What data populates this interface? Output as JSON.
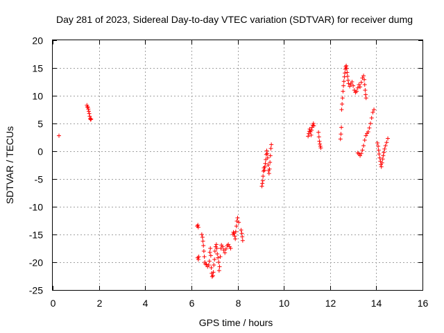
{
  "chart_data": {
    "type": "scatter",
    "title": "Day 281 of 2023, Sidereal Day-to-day VTEC variation (SDTVAR) for receiver dumg",
    "xlabel": "GPS time / hours",
    "ylabel": "SDTVAR / TECUs",
    "xlim": [
      0,
      16
    ],
    "ylim": [
      -25,
      20
    ],
    "xticks": [
      0,
      2,
      4,
      6,
      8,
      10,
      12,
      14,
      16
    ],
    "yticks": [
      -25,
      -20,
      -15,
      -10,
      -5,
      0,
      5,
      10,
      15,
      20
    ],
    "grid": true,
    "marker": "+",
    "color": "#ff0000",
    "series": [
      {
        "name": "SDTVAR",
        "points": [
          [
            0.27,
            2.8
          ],
          [
            1.48,
            8.3
          ],
          [
            1.5,
            8.0
          ],
          [
            1.52,
            7.9
          ],
          [
            1.54,
            7.6
          ],
          [
            1.56,
            7.2
          ],
          [
            1.58,
            6.8
          ],
          [
            1.6,
            6.3
          ],
          [
            1.62,
            5.9
          ],
          [
            1.64,
            5.7
          ],
          [
            1.66,
            5.8
          ],
          [
            6.25,
            -13.5
          ],
          [
            6.28,
            -13.3
          ],
          [
            6.3,
            -13.7
          ],
          [
            6.27,
            -19.2
          ],
          [
            6.3,
            -19.5
          ],
          [
            6.32,
            -19.0
          ],
          [
            6.45,
            -15.0
          ],
          [
            6.48,
            -15.5
          ],
          [
            6.5,
            -16.2
          ],
          [
            6.52,
            -17.0
          ],
          [
            6.54,
            -18.0
          ],
          [
            6.56,
            -19.0
          ],
          [
            6.58,
            -20.0
          ],
          [
            6.6,
            -20.3
          ],
          [
            6.65,
            -20.4
          ],
          [
            6.7,
            -20.8
          ],
          [
            6.75,
            -20.5
          ],
          [
            6.78,
            -19.8
          ],
          [
            6.8,
            -18.2
          ],
          [
            6.82,
            -17.5
          ],
          [
            6.84,
            -18.8
          ],
          [
            6.86,
            -21.0
          ],
          [
            6.88,
            -22.0
          ],
          [
            6.9,
            -22.6
          ],
          [
            6.93,
            -22.4
          ],
          [
            6.95,
            -21.8
          ],
          [
            6.97,
            -20.5
          ],
          [
            7.0,
            -19.5
          ],
          [
            7.02,
            -18.0
          ],
          [
            7.05,
            -17.2
          ],
          [
            7.08,
            -16.8
          ],
          [
            7.1,
            -17.5
          ],
          [
            7.12,
            -18.5
          ],
          [
            7.15,
            -19.2
          ],
          [
            7.18,
            -20.0
          ],
          [
            7.2,
            -21.5
          ],
          [
            7.22,
            -20.8
          ],
          [
            7.25,
            -19.0
          ],
          [
            7.28,
            -17.5
          ],
          [
            7.3,
            -16.9
          ],
          [
            7.35,
            -17.2
          ],
          [
            7.4,
            -17.8
          ],
          [
            7.45,
            -18.3
          ],
          [
            7.5,
            -17.6
          ],
          [
            7.55,
            -17.0
          ],
          [
            7.6,
            -16.8
          ],
          [
            7.65,
            -17.2
          ],
          [
            7.7,
            -17.5
          ],
          [
            7.8,
            -15.0
          ],
          [
            7.82,
            -14.6
          ],
          [
            7.85,
            -14.8
          ],
          [
            7.88,
            -15.3
          ],
          [
            7.9,
            -15.8
          ],
          [
            7.92,
            -14.5
          ],
          [
            7.95,
            -13.5
          ],
          [
            7.97,
            -12.6
          ],
          [
            8.0,
            -12.0
          ],
          [
            8.05,
            -12.8
          ],
          [
            8.15,
            -14.2
          ],
          [
            8.18,
            -14.8
          ],
          [
            8.2,
            -15.4
          ],
          [
            8.22,
            -16.1
          ],
          [
            9.05,
            -6.3
          ],
          [
            9.07,
            -5.8
          ],
          [
            9.09,
            -5.3
          ],
          [
            9.1,
            -4.5
          ],
          [
            9.12,
            -3.6
          ],
          [
            9.14,
            -3.0
          ],
          [
            9.16,
            -3.4
          ],
          [
            9.18,
            -2.8
          ],
          [
            9.2,
            -2.2
          ],
          [
            9.22,
            -1.5
          ],
          [
            9.24,
            -0.6
          ],
          [
            9.26,
            0.1
          ],
          [
            9.28,
            -0.4
          ],
          [
            9.3,
            -1.2
          ],
          [
            9.32,
            -2.5
          ],
          [
            9.34,
            -3.5
          ],
          [
            9.36,
            -4.0
          ],
          [
            9.38,
            -3.2
          ],
          [
            9.4,
            -2.0
          ],
          [
            9.42,
            -0.8
          ],
          [
            9.44,
            0.5
          ],
          [
            9.46,
            1.2
          ],
          [
            11.05,
            2.7
          ],
          [
            11.08,
            3.2
          ],
          [
            11.1,
            3.6
          ],
          [
            11.12,
            4.0
          ],
          [
            11.15,
            3.5
          ],
          [
            11.18,
            2.9
          ],
          [
            11.2,
            3.8
          ],
          [
            11.22,
            4.3
          ],
          [
            11.25,
            4.7
          ],
          [
            11.28,
            5.0
          ],
          [
            11.3,
            4.6
          ],
          [
            11.5,
            3.4
          ],
          [
            11.52,
            2.6
          ],
          [
            11.54,
            1.8
          ],
          [
            11.56,
            1.3
          ],
          [
            11.58,
            0.9
          ],
          [
            11.6,
            0.6
          ],
          [
            12.45,
            2.2
          ],
          [
            12.47,
            3.1
          ],
          [
            12.49,
            4.3
          ],
          [
            12.5,
            7.5
          ],
          [
            12.52,
            8.5
          ],
          [
            12.54,
            9.6
          ],
          [
            12.56,
            10.8
          ],
          [
            12.58,
            11.8
          ],
          [
            12.6,
            12.6
          ],
          [
            12.62,
            13.4
          ],
          [
            12.64,
            14.1
          ],
          [
            12.66,
            14.8
          ],
          [
            12.68,
            15.2
          ],
          [
            12.7,
            15.4
          ],
          [
            12.72,
            14.9
          ],
          [
            12.74,
            14.2
          ],
          [
            12.76,
            13.5
          ],
          [
            12.78,
            12.8
          ],
          [
            12.8,
            12.2
          ],
          [
            12.85,
            11.7
          ],
          [
            12.9,
            12.1
          ],
          [
            12.95,
            12.5
          ],
          [
            13.0,
            11.8
          ],
          [
            13.05,
            11.0
          ],
          [
            13.1,
            10.6
          ],
          [
            13.15,
            10.8
          ],
          [
            13.2,
            11.4
          ],
          [
            13.25,
            12.0
          ],
          [
            13.3,
            11.6
          ],
          [
            13.35,
            12.4
          ],
          [
            13.4,
            13.2
          ],
          [
            13.45,
            13.6
          ],
          [
            13.48,
            12.9
          ],
          [
            13.5,
            12.0
          ],
          [
            13.52,
            11.0
          ],
          [
            13.54,
            10.2
          ],
          [
            13.56,
            9.6
          ],
          [
            13.2,
            -0.3
          ],
          [
            13.25,
            -0.5
          ],
          [
            13.3,
            -0.8
          ],
          [
            13.35,
            -0.4
          ],
          [
            13.4,
            0.2
          ],
          [
            13.45,
            1.0
          ],
          [
            13.5,
            2.0
          ],
          [
            13.55,
            2.8
          ],
          [
            13.6,
            3.2
          ],
          [
            13.65,
            3.5
          ],
          [
            13.7,
            4.2
          ],
          [
            13.75,
            5.0
          ],
          [
            13.8,
            6.0
          ],
          [
            13.85,
            7.0
          ],
          [
            13.9,
            7.5
          ],
          [
            14.05,
            1.5
          ],
          [
            14.08,
            0.9
          ],
          [
            14.1,
            0.2
          ],
          [
            14.12,
            -0.5
          ],
          [
            14.15,
            -1.2
          ],
          [
            14.18,
            -1.8
          ],
          [
            14.2,
            -2.4
          ],
          [
            14.22,
            -2.8
          ],
          [
            14.25,
            -2.1
          ],
          [
            14.28,
            -1.4
          ],
          [
            14.3,
            -0.8
          ],
          [
            14.33,
            -0.2
          ],
          [
            14.36,
            0.4
          ],
          [
            14.4,
            1.0
          ],
          [
            14.45,
            1.6
          ],
          [
            14.5,
            2.3
          ]
        ]
      }
    ]
  }
}
